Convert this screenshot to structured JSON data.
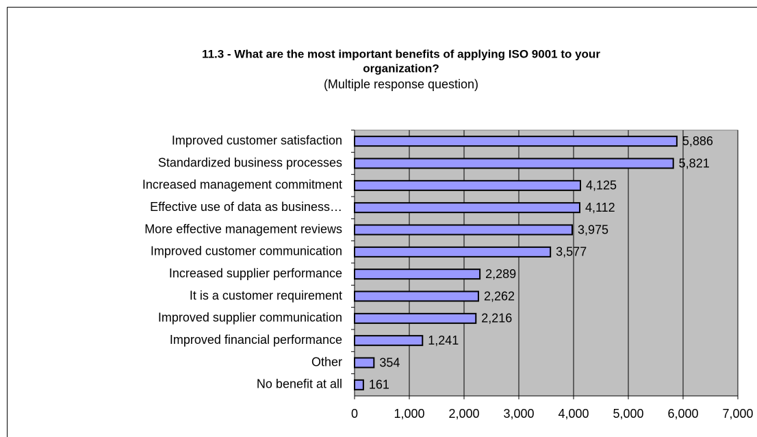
{
  "chart_data": {
    "type": "barh",
    "title": [
      "11.3 - What are the most important benefits of applying ISO 9001 to your",
      "organization?"
    ],
    "subtitle": "(Multiple response question)",
    "categories": [
      "Improved customer satisfaction",
      "Standardized business processes",
      "Increased management commitment",
      "Effective use of data as business…",
      "More effective management reviews",
      "Improved customer communication",
      "Increased supplier performance",
      "It is a customer requirement",
      "Improved supplier communication",
      "Improved financial performance",
      "Other",
      "No benefit at all"
    ],
    "values": [
      5886,
      5821,
      4125,
      4112,
      3975,
      3577,
      2289,
      2262,
      2216,
      1241,
      354,
      161
    ],
    "value_labels": [
      "5,886",
      "5,821",
      "4,125",
      "4,112",
      "3,975",
      "3,577",
      "2,289",
      "2,262",
      "2,216",
      "1,241",
      "354",
      "161"
    ],
    "color": "#9999ff",
    "xlim": [
      0,
      7000
    ],
    "xticks": [
      0,
      {
        "value": 1000,
        "label": "1,000"
      },
      {
        "value": 2000,
        "label": "2,000"
      },
      {
        "value": 3000,
        "label": "3,000"
      },
      {
        "value": 4000,
        "label": "4,000"
      },
      {
        "value": 5000,
        "label": "5,000"
      },
      {
        "value": 6000,
        "label": "6,000"
      },
      {
        "value": 7000,
        "label": "7,000"
      }
    ],
    "grid": true
  }
}
